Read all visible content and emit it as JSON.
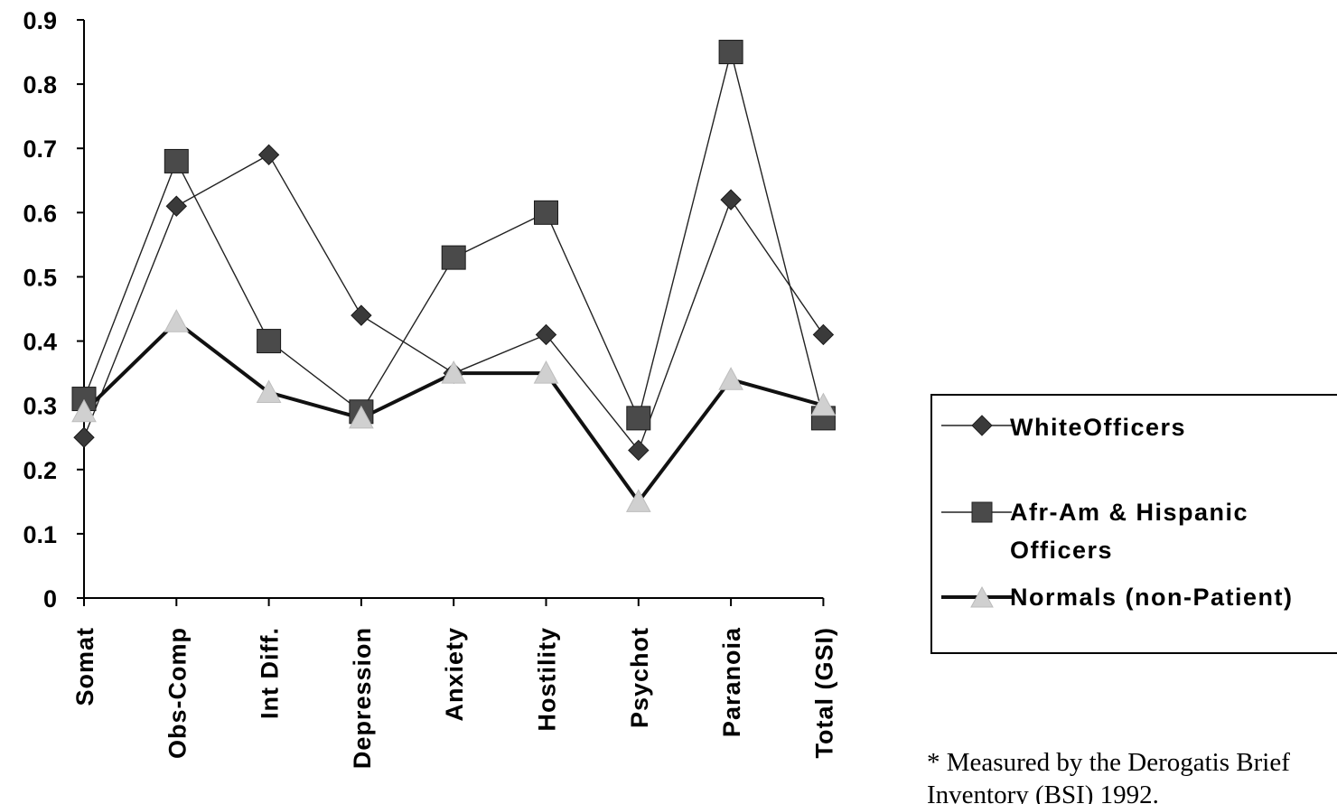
{
  "chart_data": {
    "type": "line",
    "categories": [
      "Somat",
      "Obs-Comp",
      "Int Diff.",
      "Depression",
      "Anxiety",
      "Hostility",
      "Psychot",
      "Paranoia",
      "Total (GSI)"
    ],
    "yticks": [
      "0",
      "0.1",
      "0.2",
      "0.3",
      "0.4",
      "0.5",
      "0.6",
      "0.7",
      "0.8",
      "0.9"
    ],
    "ylim": [
      0,
      0.9
    ],
    "grid": false,
    "legend_position": "right",
    "series": [
      {
        "name": "WhiteOfficers",
        "values": [
          0.25,
          0.61,
          0.69,
          0.44,
          0.35,
          0.41,
          0.23,
          0.62,
          0.41
        ],
        "color": "#3a3a3a",
        "marker": "diamond",
        "line": "thin"
      },
      {
        "name": "Afr-Am & Hispanic Officers",
        "values": [
          0.31,
          0.68,
          0.4,
          0.29,
          0.53,
          0.6,
          0.28,
          0.85,
          0.28
        ],
        "color": "#4a4a4a",
        "marker": "square",
        "line": "thin"
      },
      {
        "name": "Normals (non-Patient)",
        "values": [
          0.29,
          0.43,
          0.32,
          0.28,
          0.35,
          0.35,
          0.15,
          0.34,
          0.3
        ],
        "color": "#d0d0d0",
        "marker": "triangle",
        "line": "thick",
        "line_color": "#111111"
      }
    ]
  },
  "footnote": {
    "line1": "* Measured by the Derogatis Brief",
    "line2": "Inventory (BSI) 1992."
  }
}
